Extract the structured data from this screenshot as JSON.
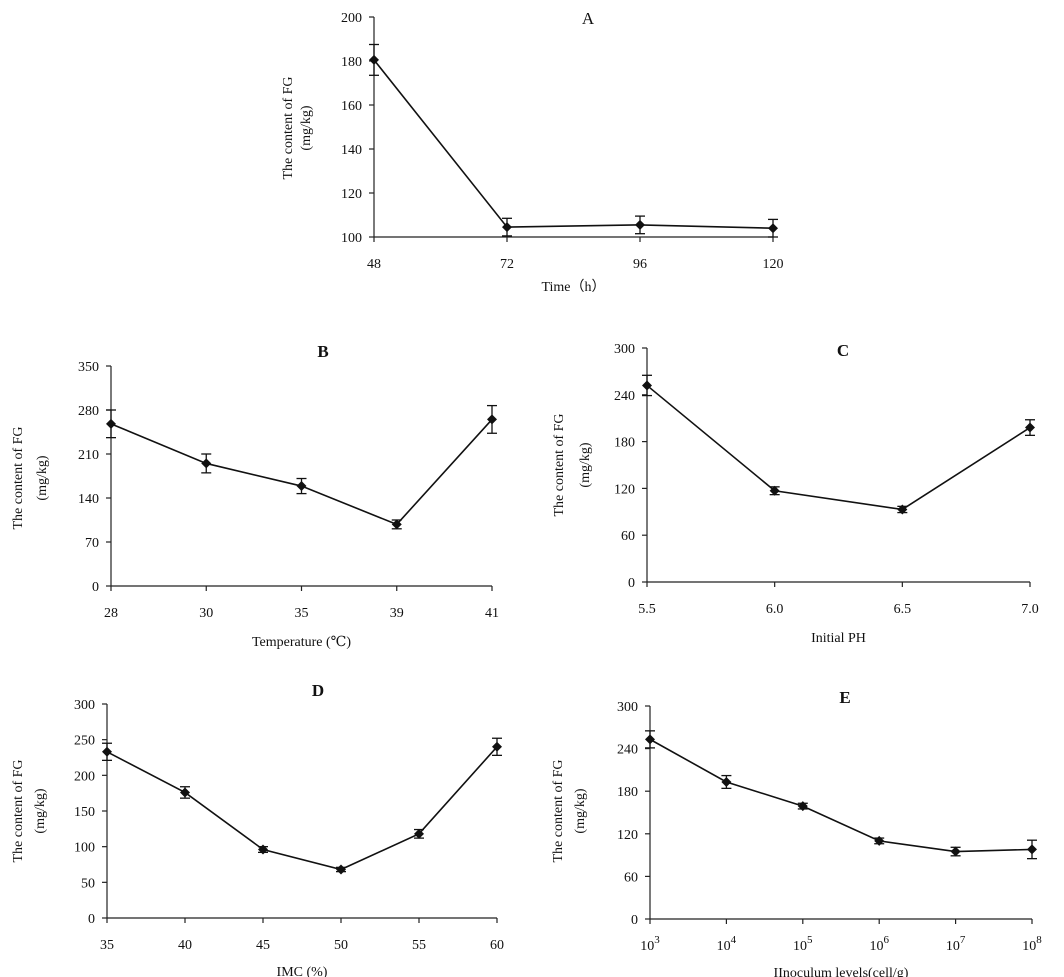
{
  "chart_data": [
    {
      "panel": "A",
      "type": "line",
      "title": "A",
      "ylabel_lines": [
        "The content of FG",
        "(mg/kg)"
      ],
      "xlabel": "Time（h）",
      "categories": [
        "48",
        "72",
        "96",
        "120"
      ],
      "values": [
        180.5,
        104.5,
        105.5,
        104.0
      ],
      "errors": [
        7,
        4,
        4,
        4
      ],
      "ylim": [
        100,
        200
      ],
      "yticks": [
        "100",
        "120",
        "140",
        "160",
        "180",
        "200"
      ]
    },
    {
      "panel": "B",
      "type": "line",
      "title": "B",
      "ylabel_lines": [
        "The content of FG",
        "(mg/kg)"
      ],
      "xlabel": "Temperature (℃)",
      "categories": [
        "28",
        "30",
        "35",
        "39",
        "41"
      ],
      "values": [
        258,
        195,
        159,
        98,
        265
      ],
      "errors": [
        22,
        15,
        12,
        7,
        22
      ],
      "ylim": [
        0,
        350
      ],
      "yticks": [
        "0",
        "70",
        "140",
        "210",
        "280",
        "350"
      ]
    },
    {
      "panel": "C",
      "type": "line",
      "title": "C",
      "ylabel_lines": [
        "The content of FG",
        "(mg/kg)"
      ],
      "xlabel": "Initial PH",
      "categories": [
        "5.5",
        "6.0",
        "6.5",
        "7.0"
      ],
      "values": [
        252,
        117,
        93,
        198
      ],
      "errors": [
        13,
        5,
        4,
        10
      ],
      "ylim": [
        0,
        300
      ],
      "yticks": [
        "0",
        "60",
        "120",
        "180",
        "240",
        "300"
      ]
    },
    {
      "panel": "D",
      "type": "line",
      "title": "D",
      "ylabel_lines": [
        "The content of FG",
        "(mg/kg)"
      ],
      "xlabel": "IMC (%)",
      "categories": [
        "35",
        "40",
        "45",
        "50",
        "55",
        "60"
      ],
      "values": [
        233,
        176,
        96,
        68,
        118,
        240
      ],
      "errors": [
        12,
        8,
        4,
        3,
        6,
        12
      ],
      "ylim": [
        0,
        300
      ],
      "yticks": [
        "0",
        "50",
        "100",
        "150",
        "200",
        "250",
        "300"
      ]
    },
    {
      "panel": "E",
      "type": "line",
      "title": "E",
      "ylabel_lines": [
        "The content of FG",
        "(mg/kg)"
      ],
      "xlabel": "IInoculum levels(cell/g)",
      "categories": [
        "10^3",
        "10^4",
        "10^5",
        "10^6",
        "10^7",
        "10^8"
      ],
      "category_base": "10",
      "category_exponents": [
        "3",
        "4",
        "5",
        "6",
        "7",
        "8"
      ],
      "values": [
        253,
        193,
        159,
        110,
        95,
        98
      ],
      "errors": [
        12,
        9,
        4,
        4,
        6,
        13
      ],
      "ylim": [
        0,
        300
      ],
      "yticks": [
        "0",
        "60",
        "120",
        "180",
        "240",
        "300"
      ]
    }
  ]
}
